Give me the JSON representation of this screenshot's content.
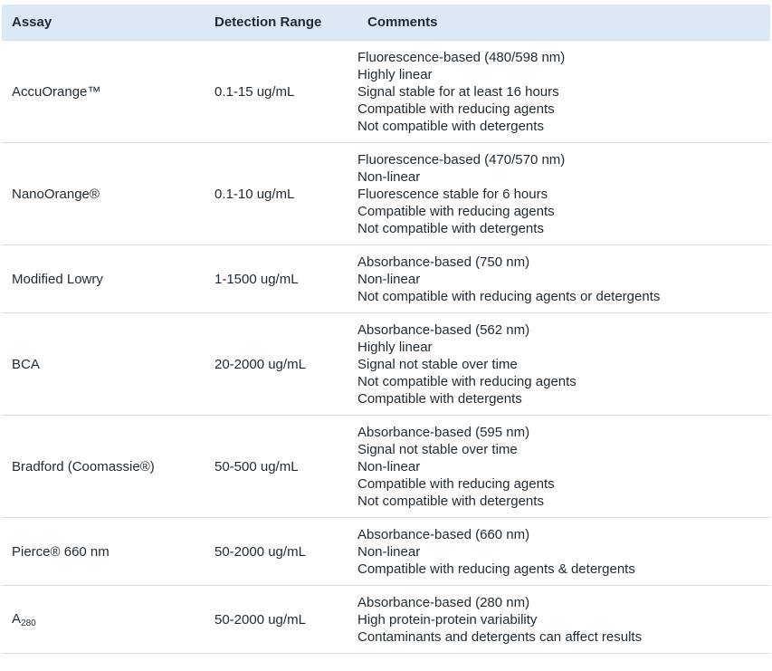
{
  "headers": {
    "assay": "Assay",
    "range": "Detection Range",
    "comments": "Comments"
  },
  "rows": [
    {
      "assay": "AccuOrange™",
      "range": "0.1-15 ug/mL",
      "comments": [
        "Fluorescence-based (480/598 nm)",
        "Highly linear",
        "Signal stable for at least 16 hours",
        "Compatible with reducing agents",
        "Not compatible with detergents"
      ]
    },
    {
      "assay": "NanoOrange®",
      "range": "0.1-10 ug/mL",
      "comments": [
        "Fluorescence-based (470/570 nm)",
        "Non-linear",
        "Fluorescence stable for 6 hours",
        "Compatible with reducing agents",
        "Not compatible with detergents"
      ]
    },
    {
      "assay": "Modified Lowry",
      "range": "1-1500 ug/mL",
      "comments": [
        "Absorbance-based (750 nm)",
        "Non-linear",
        "Not compatible with reducing agents or detergents"
      ]
    },
    {
      "assay": "BCA",
      "range": "20-2000 ug/mL",
      "comments": [
        "Absorbance-based (562 nm)",
        "Highly linear",
        "Signal not stable over time",
        "Not compatible with reducing agents",
        "Compatible with detergents"
      ]
    },
    {
      "assay": "Bradford (Coomassie®)",
      "range": "50-500 ug/mL",
      "comments": [
        "Absorbance-based (595 nm)",
        "Signal not stable over time",
        "Non-linear",
        "Compatible with reducing agents",
        "Not compatible with detergents"
      ]
    },
    {
      "assay": "Pierce® 660 nm",
      "range": "50-2000 ug/mL",
      "comments": [
        "Absorbance-based (660 nm)",
        "Non-linear",
        "Compatible with reducing agents & detergents"
      ]
    },
    {
      "assay_main": "A",
      "assay_sub": "280",
      "range": "50-2000 ug/mL",
      "comments": [
        "Absorbance-based (280 nm)",
        "High protein-protein variability",
        "Contaminants and detergents can affect results"
      ]
    }
  ]
}
